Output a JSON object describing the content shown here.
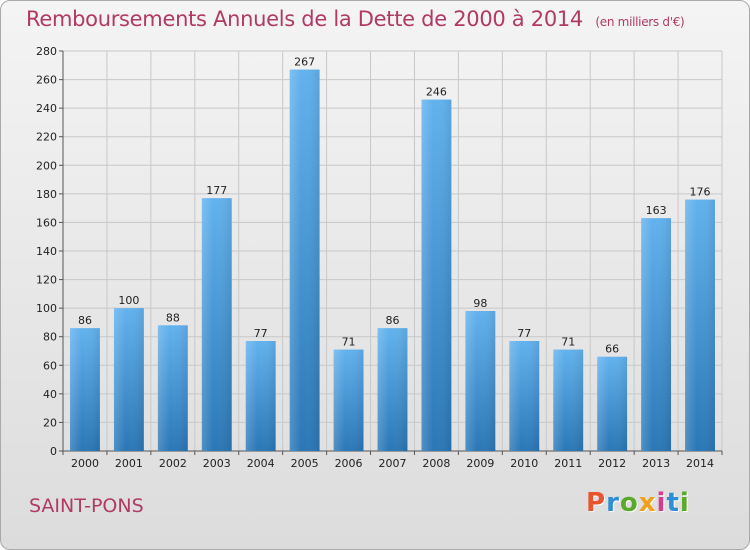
{
  "header": {
    "title": "Remboursements Annuels de la Dette de 2000 à 2014",
    "subtitle": "(en milliers d'€)"
  },
  "footer": {
    "place": "SAINT-PONS",
    "logo_text": "Proxiti"
  },
  "colors": {
    "accent": "#b03a64",
    "bar_top": "#62b2ee",
    "bar_bottom": "#2a77b6",
    "logo_letters": [
      "#e8542e",
      "#2e8fd6",
      "#5aaa2a",
      "#f2a01b",
      "#d63c8c",
      "#2e8fd6",
      "#5aaa2a"
    ]
  },
  "chart_data": {
    "type": "bar",
    "title": "Remboursements Annuels de la Dette de 2000 à 2014",
    "subtitle": "(en milliers d'€)",
    "categories": [
      "2000",
      "2001",
      "2002",
      "2003",
      "2004",
      "2005",
      "2006",
      "2007",
      "2008",
      "2009",
      "2010",
      "2011",
      "2012",
      "2013",
      "2014"
    ],
    "values": [
      86,
      100,
      88,
      177,
      77,
      267,
      71,
      86,
      246,
      98,
      77,
      71,
      66,
      163,
      176
    ],
    "ylim": [
      0,
      280
    ],
    "yticks": [
      0,
      20,
      40,
      60,
      80,
      100,
      120,
      140,
      160,
      180,
      200,
      220,
      240,
      260,
      280
    ],
    "grid": true,
    "xlabel": "",
    "ylabel": ""
  }
}
